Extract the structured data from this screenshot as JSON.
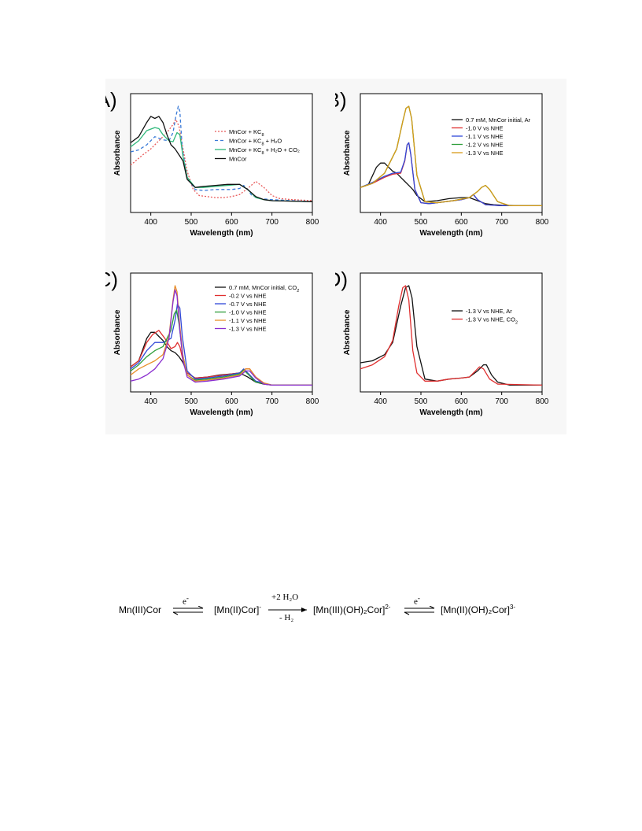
{
  "chart_data": [
    {
      "type": "line",
      "panel_label": "(A)",
      "xlabel": "Wavelength (nm)",
      "ylabel": "Absorbance",
      "xlim": [
        350,
        800
      ],
      "xticks": [
        400,
        500,
        600,
        700,
        800
      ],
      "legend_position": "top-right",
      "series": [
        {
          "name": "MnCor + KC8",
          "legend_text": "MnCor + KC",
          "legend_sub": "8",
          "legend_tail": "",
          "color": "#e85a5a",
          "dash": "2,2",
          "x": [
            350,
            380,
            400,
            420,
            440,
            455,
            462,
            470,
            478,
            490,
            505,
            520,
            540,
            560,
            580,
            600,
            620,
            640,
            660,
            680,
            700,
            720,
            750,
            800
          ],
          "y": [
            0.42,
            0.52,
            0.58,
            0.66,
            0.74,
            0.82,
            0.87,
            0.8,
            0.62,
            0.36,
            0.18,
            0.12,
            0.11,
            0.1,
            0.1,
            0.11,
            0.13,
            0.19,
            0.26,
            0.2,
            0.12,
            0.09,
            0.08,
            0.07
          ]
        },
        {
          "name": "MnCor + KC8 + H2O",
          "legend_text": "MnCor + KC",
          "legend_sub": "8",
          "legend_tail": " + H₂O",
          "color": "#3b7bd8",
          "dash": "4,3",
          "x": [
            350,
            370,
            390,
            410,
            430,
            445,
            455,
            462,
            468,
            472,
            478,
            490,
            510,
            530,
            560,
            600,
            620,
            630,
            640,
            650,
            670,
            700,
            750,
            800
          ],
          "y": [
            0.55,
            0.57,
            0.62,
            0.7,
            0.67,
            0.66,
            0.74,
            0.9,
            1.0,
            0.95,
            0.58,
            0.3,
            0.18,
            0.17,
            0.18,
            0.18,
            0.19,
            0.22,
            0.18,
            0.12,
            0.09,
            0.08,
            0.07,
            0.06
          ]
        },
        {
          "name": "MnCor + KC8 + H2O + CO2",
          "legend_text": "MnCor + KC",
          "legend_sub": "8",
          "legend_tail": " + H₂O + CO₂",
          "color": "#2eb87a",
          "dash": "",
          "x": [
            350,
            370,
            390,
            410,
            420,
            430,
            445,
            455,
            465,
            472,
            480,
            490,
            510,
            530,
            560,
            590,
            620,
            640,
            660,
            680,
            700,
            750,
            800
          ],
          "y": [
            0.6,
            0.66,
            0.76,
            0.79,
            0.78,
            0.72,
            0.66,
            0.65,
            0.74,
            0.72,
            0.5,
            0.3,
            0.2,
            0.2,
            0.21,
            0.22,
            0.23,
            0.18,
            0.1,
            0.08,
            0.07,
            0.065,
            0.06
          ]
        },
        {
          "name": "MnCor",
          "legend_text": "MnCor",
          "legend_sub": "",
          "legend_tail": "",
          "color": "#111111",
          "dash": "",
          "x": [
            350,
            370,
            390,
            400,
            410,
            420,
            430,
            440,
            450,
            460,
            470,
            480,
            490,
            510,
            530,
            560,
            590,
            620,
            640,
            660,
            680,
            700,
            750,
            800
          ],
          "y": [
            0.64,
            0.7,
            0.84,
            0.9,
            0.88,
            0.9,
            0.84,
            0.72,
            0.62,
            0.58,
            0.52,
            0.46,
            0.28,
            0.2,
            0.21,
            0.22,
            0.23,
            0.23,
            0.18,
            0.11,
            0.08,
            0.07,
            0.065,
            0.06
          ]
        }
      ]
    },
    {
      "type": "line",
      "panel_label": "(B)",
      "xlabel": "Wavelength (nm)",
      "ylabel": "Absorbance",
      "xlim": [
        350,
        800
      ],
      "xticks": [
        400,
        500,
        600,
        700,
        800
      ],
      "legend_position": "top-right",
      "series": [
        {
          "name": "0.7 mM, MnCor initial, Ar",
          "legend_text": "0.7 mM, MnCor initial, Ar",
          "legend_sub": "",
          "legend_tail": "",
          "color": "#111111",
          "dash": "",
          "x": [
            350,
            370,
            390,
            400,
            410,
            420,
            430,
            440,
            450,
            460,
            470,
            480,
            490,
            510,
            540,
            570,
            600,
            620,
            640,
            660,
            680,
            700,
            750,
            800
          ],
          "y": [
            0.2,
            0.23,
            0.4,
            0.44,
            0.44,
            0.4,
            0.36,
            0.34,
            0.3,
            0.26,
            0.22,
            0.18,
            0.12,
            0.06,
            0.07,
            0.09,
            0.1,
            0.1,
            0.07,
            0.04,
            0.03,
            0.025,
            0.02,
            0.02
          ]
        },
        {
          "name": "-1.0 V vs NHE",
          "legend_text": "-1.0 V vs NHE",
          "legend_sub": "",
          "legend_tail": "",
          "color": "#e03030",
          "dash": "",
          "x": [
            350,
            380,
            410,
            430,
            450,
            460,
            466,
            470,
            475,
            485,
            500,
            520,
            560,
            600,
            620,
            630,
            640,
            660,
            700,
            800
          ],
          "y": [
            0.2,
            0.24,
            0.3,
            0.33,
            0.34,
            0.46,
            0.62,
            0.64,
            0.52,
            0.18,
            0.05,
            0.04,
            0.06,
            0.08,
            0.1,
            0.13,
            0.08,
            0.03,
            0.02,
            0.02
          ]
        },
        {
          "name": "-1.1 V vs NHE",
          "legend_text": "-1.1 V vs NHE",
          "legend_sub": "",
          "legend_tail": "",
          "color": "#3048d8",
          "dash": "",
          "x": [
            350,
            380,
            410,
            430,
            450,
            460,
            466,
            470,
            475,
            485,
            500,
            520,
            560,
            600,
            620,
            630,
            640,
            660,
            700,
            800
          ],
          "y": [
            0.2,
            0.25,
            0.31,
            0.34,
            0.35,
            0.47,
            0.62,
            0.64,
            0.52,
            0.18,
            0.05,
            0.04,
            0.06,
            0.08,
            0.1,
            0.13,
            0.08,
            0.03,
            0.02,
            0.02
          ]
        },
        {
          "name": "-1.2 V vs NHE",
          "legend_text": "-1.2 V vs NHE",
          "legend_sub": "",
          "legend_tail": "",
          "color": "#2e9e3a",
          "dash": "",
          "x": [
            350,
            380,
            410,
            440,
            455,
            463,
            470,
            477,
            490,
            510,
            540,
            580,
            620,
            640,
            650,
            660,
            670,
            690,
            720,
            800
          ],
          "y": [
            0.2,
            0.24,
            0.34,
            0.58,
            0.85,
            0.98,
            1.0,
            0.88,
            0.32,
            0.06,
            0.05,
            0.07,
            0.1,
            0.16,
            0.2,
            0.22,
            0.18,
            0.06,
            0.02,
            0.02
          ]
        },
        {
          "name": "-1.3 V vs NHE",
          "legend_text": "-1.3 V vs NHE",
          "legend_sub": "",
          "legend_tail": "",
          "color": "#d89a18",
          "dash": "",
          "x": [
            350,
            380,
            410,
            440,
            455,
            463,
            470,
            477,
            490,
            510,
            540,
            580,
            620,
            640,
            650,
            660,
            670,
            690,
            720,
            800
          ],
          "y": [
            0.2,
            0.24,
            0.34,
            0.58,
            0.85,
            0.98,
            1.0,
            0.88,
            0.32,
            0.06,
            0.05,
            0.07,
            0.1,
            0.16,
            0.2,
            0.22,
            0.18,
            0.06,
            0.02,
            0.02
          ]
        }
      ]
    },
    {
      "type": "line",
      "panel_label": "(C)",
      "xlabel": "Wavelength (nm)",
      "ylabel": "Absorbance",
      "xlim": [
        350,
        800
      ],
      "xticks": [
        400,
        500,
        600,
        700,
        800
      ],
      "legend_position": "top-right",
      "series": [
        {
          "name": "0.7 mM, MnCor initial, CO2",
          "legend_text": "0.7 mM, MnCor initial, CO",
          "legend_sub": "2",
          "legend_tail": "",
          "color": "#111111",
          "dash": "",
          "x": [
            350,
            370,
            390,
            400,
            410,
            420,
            430,
            440,
            450,
            460,
            470,
            480,
            490,
            510,
            540,
            570,
            600,
            620,
            640,
            660,
            680,
            700,
            750,
            800
          ],
          "y": [
            0.2,
            0.26,
            0.48,
            0.54,
            0.54,
            0.5,
            0.46,
            0.4,
            0.36,
            0.34,
            0.3,
            0.24,
            0.14,
            0.09,
            0.1,
            0.12,
            0.13,
            0.14,
            0.1,
            0.05,
            0.03,
            0.02,
            0.02,
            0.02
          ]
        },
        {
          "name": "-0.2 V vs NHE",
          "legend_text": "-0.2 V vs NHE",
          "legend_sub": "",
          "legend_tail": "",
          "color": "#e03030",
          "dash": "",
          "x": [
            350,
            370,
            390,
            405,
            420,
            435,
            450,
            460,
            466,
            472,
            480,
            490,
            510,
            540,
            580,
            620,
            635,
            645,
            660,
            680,
            700,
            800
          ],
          "y": [
            0.2,
            0.26,
            0.44,
            0.52,
            0.56,
            0.48,
            0.38,
            0.4,
            0.44,
            0.4,
            0.26,
            0.14,
            0.09,
            0.1,
            0.12,
            0.14,
            0.18,
            0.18,
            0.1,
            0.04,
            0.02,
            0.02
          ]
        },
        {
          "name": "-0.7 V vs NHE",
          "legend_text": "-0.7 V vs NHE",
          "legend_sub": "",
          "legend_tail": "",
          "color": "#3048d8",
          "dash": "",
          "x": [
            350,
            370,
            390,
            410,
            430,
            450,
            460,
            466,
            472,
            478,
            490,
            510,
            540,
            580,
            620,
            630,
            640,
            660,
            700,
            800
          ],
          "y": [
            0.18,
            0.24,
            0.36,
            0.44,
            0.44,
            0.48,
            0.66,
            0.82,
            0.78,
            0.5,
            0.16,
            0.08,
            0.09,
            0.11,
            0.14,
            0.18,
            0.14,
            0.06,
            0.02,
            0.02
          ]
        },
        {
          "name": "-1.0 V vs NHE",
          "legend_text": "-1.0 V vs NHE",
          "legend_sub": "",
          "legend_tail": "",
          "color": "#2e9e3a",
          "dash": "",
          "x": [
            350,
            370,
            390,
            410,
            430,
            450,
            458,
            464,
            470,
            478,
            490,
            510,
            540,
            580,
            620,
            630,
            640,
            660,
            700,
            800
          ],
          "y": [
            0.16,
            0.22,
            0.3,
            0.36,
            0.4,
            0.56,
            0.72,
            0.76,
            0.62,
            0.34,
            0.12,
            0.07,
            0.08,
            0.1,
            0.13,
            0.17,
            0.13,
            0.05,
            0.02,
            0.02
          ]
        },
        {
          "name": "-1.1 V vs NHE",
          "legend_text": "-1.1 V vs NHE",
          "legend_sub": "",
          "legend_tail": "",
          "color": "#e8902a",
          "dash": "",
          "x": [
            350,
            370,
            390,
            410,
            430,
            445,
            455,
            460,
            465,
            472,
            480,
            490,
            510,
            540,
            580,
            620,
            635,
            645,
            660,
            680,
            700,
            800
          ],
          "y": [
            0.12,
            0.18,
            0.22,
            0.26,
            0.32,
            0.5,
            0.86,
            1.0,
            0.94,
            0.6,
            0.3,
            0.12,
            0.06,
            0.07,
            0.09,
            0.12,
            0.18,
            0.18,
            0.1,
            0.04,
            0.02,
            0.02
          ]
        },
        {
          "name": "-1.3 V vs NHE",
          "legend_text": "-1.3 V vs NHE",
          "legend_sub": "",
          "legend_tail": "",
          "color": "#8a2ecf",
          "dash": "",
          "x": [
            350,
            370,
            390,
            410,
            430,
            445,
            455,
            460,
            465,
            472,
            480,
            490,
            510,
            540,
            580,
            620,
            635,
            645,
            660,
            680,
            700,
            800
          ],
          "y": [
            0.06,
            0.08,
            0.12,
            0.18,
            0.28,
            0.48,
            0.84,
            0.96,
            0.9,
            0.56,
            0.26,
            0.1,
            0.05,
            0.06,
            0.08,
            0.11,
            0.16,
            0.16,
            0.09,
            0.03,
            0.02,
            0.02
          ]
        }
      ]
    },
    {
      "type": "line",
      "panel_label": "(D)",
      "xlabel": "Wavelength (nm)",
      "ylabel": "Absorbance",
      "xlim": [
        350,
        800
      ],
      "xticks": [
        400,
        500,
        600,
        700,
        800
      ],
      "legend_position": "center-right",
      "series": [
        {
          "name": "-1.3 V vs NHE, Ar",
          "legend_text": "-1.3 V vs NHE, Ar",
          "legend_sub": "",
          "legend_tail": "",
          "color": "#111111",
          "dash": "",
          "x": [
            350,
            380,
            410,
            430,
            450,
            462,
            470,
            478,
            490,
            510,
            540,
            570,
            600,
            620,
            640,
            655,
            662,
            675,
            690,
            720,
            800
          ],
          "y": [
            0.24,
            0.26,
            0.32,
            0.44,
            0.8,
            0.98,
            1.0,
            0.88,
            0.4,
            0.08,
            0.06,
            0.08,
            0.09,
            0.1,
            0.16,
            0.22,
            0.22,
            0.12,
            0.05,
            0.02,
            0.02
          ]
        },
        {
          "name": "-1.3 V vs NHE, CO2",
          "legend_text": "-1.3 V vs NHE, CO",
          "legend_sub": "2",
          "legend_tail": "",
          "color": "#e03030",
          "dash": "",
          "x": [
            350,
            380,
            410,
            430,
            445,
            455,
            462,
            470,
            480,
            490,
            510,
            540,
            570,
            600,
            620,
            635,
            645,
            655,
            670,
            690,
            800
          ],
          "y": [
            0.18,
            0.22,
            0.3,
            0.46,
            0.8,
            0.98,
            1.0,
            0.86,
            0.36,
            0.14,
            0.06,
            0.06,
            0.08,
            0.09,
            0.1,
            0.16,
            0.2,
            0.18,
            0.08,
            0.03,
            0.02
          ]
        }
      ]
    }
  ],
  "scheme": {
    "species": [
      {
        "main": "Mn(III)Cor",
        "sup": ""
      },
      {
        "main": "[Mn(II)Cor]",
        "sup": "-"
      },
      {
        "main": "[Mn(III)(OH)₂Cor]",
        "sup": "2-"
      },
      {
        "main": "[Mn(II)(OH)₂Cor]",
        "sup": "3-"
      }
    ],
    "arrow1_top": "e",
    "arrow1_top_sup": "-",
    "arrow2_top": "+2 H₂O",
    "arrow2_bottom": "- H₂",
    "arrow3_top": "e",
    "arrow3_top_sup": "-"
  }
}
